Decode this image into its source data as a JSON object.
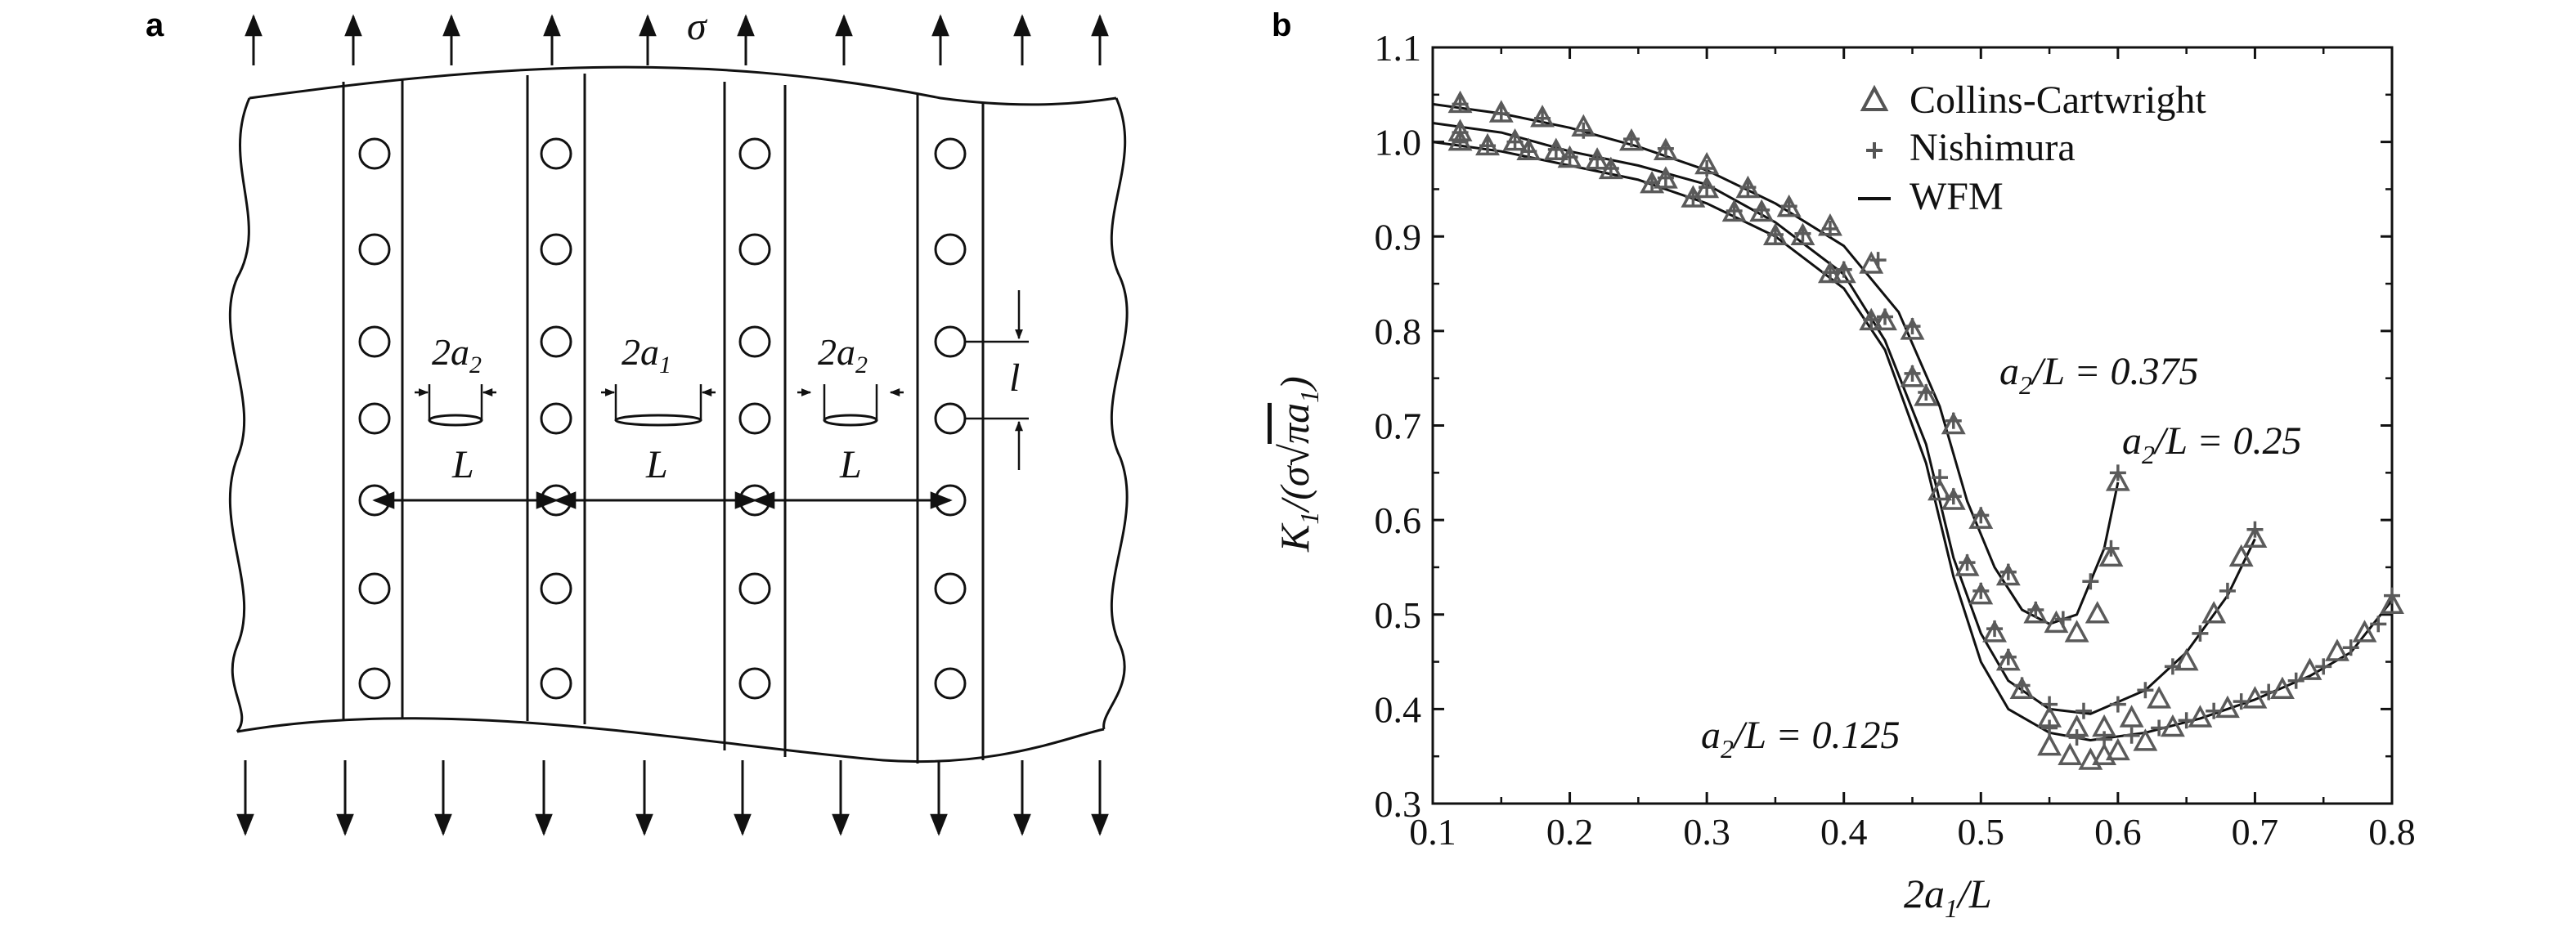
{
  "panels": {
    "a": {
      "letter": "a",
      "stress_label": "σ",
      "dim_2a2": "2a",
      "dim_2a2_sub": "2",
      "dim_2a1": "2a",
      "dim_2a1_sub": "1",
      "dim_L": "L",
      "dim_l": "l"
    },
    "b": {
      "letter": "b"
    }
  },
  "chart_data": {
    "type": "scatter",
    "xlabel_main": "2a",
    "xlabel_sub": "1",
    "xlabel_tail": "/L",
    "ylabel": "K1/(σ√πa1)",
    "xlim": [
      0.1,
      0.8
    ],
    "ylim": [
      0.3,
      1.1
    ],
    "x_ticks": [
      "0.1",
      "0.2",
      "0.3",
      "0.4",
      "0.5",
      "0.6",
      "0.7",
      "0.8"
    ],
    "y_ticks": [
      "0.3",
      "0.4",
      "0.5",
      "0.6",
      "0.7",
      "0.8",
      "0.9",
      "1.0",
      "1.1"
    ],
    "legend": {
      "placement": "top-right",
      "entries": [
        "Collins-Cartwright",
        "Nishimura",
        "WFM"
      ]
    },
    "annotations": [
      {
        "text_a": "a",
        "text_sub": "2",
        "text_b": "/L = 0.375"
      },
      {
        "text_a": "a",
        "text_sub": "2",
        "text_b": "/L = 0.25"
      },
      {
        "text_a": "a",
        "text_sub": "2",
        "text_b": "/L = 0.125"
      }
    ],
    "series": [
      {
        "curve": "a2/L = 0.375",
        "wfm": [
          [
            0.1,
            1.04
          ],
          [
            0.15,
            1.03
          ],
          [
            0.2,
            1.015
          ],
          [
            0.25,
            0.995
          ],
          [
            0.3,
            0.97
          ],
          [
            0.35,
            0.935
          ],
          [
            0.4,
            0.89
          ],
          [
            0.44,
            0.82
          ],
          [
            0.47,
            0.72
          ],
          [
            0.49,
            0.62
          ],
          [
            0.51,
            0.55
          ],
          [
            0.53,
            0.505
          ],
          [
            0.55,
            0.49
          ],
          [
            0.57,
            0.5
          ],
          [
            0.59,
            0.57
          ],
          [
            0.6,
            0.64
          ]
        ],
        "collins": [
          [
            0.12,
            1.04
          ],
          [
            0.15,
            1.03
          ],
          [
            0.18,
            1.025
          ],
          [
            0.21,
            1.015
          ],
          [
            0.245,
            1.0
          ],
          [
            0.27,
            0.99
          ],
          [
            0.3,
            0.975
          ],
          [
            0.33,
            0.95
          ],
          [
            0.36,
            0.93
          ],
          [
            0.39,
            0.91
          ],
          [
            0.42,
            0.87
          ],
          [
            0.45,
            0.8
          ],
          [
            0.48,
            0.7
          ],
          [
            0.5,
            0.6
          ],
          [
            0.52,
            0.54
          ],
          [
            0.54,
            0.5
          ],
          [
            0.555,
            0.49
          ],
          [
            0.57,
            0.48
          ],
          [
            0.585,
            0.5
          ],
          [
            0.595,
            0.56
          ],
          [
            0.6,
            0.64
          ]
        ],
        "nishimura": [
          [
            0.12,
            1.04
          ],
          [
            0.15,
            1.03
          ],
          [
            0.18,
            1.025
          ],
          [
            0.21,
            1.012
          ],
          [
            0.245,
            1.003
          ],
          [
            0.27,
            0.993
          ],
          [
            0.3,
            0.972
          ],
          [
            0.33,
            0.952
          ],
          [
            0.36,
            0.932
          ],
          [
            0.39,
            0.908
          ],
          [
            0.425,
            0.875
          ],
          [
            0.45,
            0.805
          ],
          [
            0.48,
            0.705
          ],
          [
            0.5,
            0.605
          ],
          [
            0.52,
            0.545
          ],
          [
            0.54,
            0.505
          ],
          [
            0.56,
            0.495
          ],
          [
            0.58,
            0.535
          ],
          [
            0.595,
            0.57
          ],
          [
            0.6,
            0.65
          ]
        ]
      },
      {
        "curve": "a2/L = 0.25",
        "wfm": [
          [
            0.1,
            1.02
          ],
          [
            0.15,
            1.01
          ],
          [
            0.2,
            0.99
          ],
          [
            0.25,
            0.975
          ],
          [
            0.3,
            0.955
          ],
          [
            0.35,
            0.915
          ],
          [
            0.4,
            0.86
          ],
          [
            0.43,
            0.79
          ],
          [
            0.46,
            0.68
          ],
          [
            0.48,
            0.56
          ],
          [
            0.5,
            0.48
          ],
          [
            0.52,
            0.43
          ],
          [
            0.55,
            0.4
          ],
          [
            0.58,
            0.395
          ],
          [
            0.62,
            0.42
          ],
          [
            0.65,
            0.46
          ],
          [
            0.68,
            0.52
          ],
          [
            0.7,
            0.58
          ]
        ],
        "collins": [
          [
            0.12,
            1.01
          ],
          [
            0.16,
            1.0
          ],
          [
            0.19,
            0.99
          ],
          [
            0.22,
            0.98
          ],
          [
            0.27,
            0.96
          ],
          [
            0.3,
            0.95
          ],
          [
            0.34,
            0.925
          ],
          [
            0.37,
            0.9
          ],
          [
            0.4,
            0.86
          ],
          [
            0.43,
            0.81
          ],
          [
            0.46,
            0.73
          ],
          [
            0.48,
            0.62
          ],
          [
            0.5,
            0.52
          ],
          [
            0.52,
            0.45
          ],
          [
            0.55,
            0.39
          ],
          [
            0.57,
            0.38
          ],
          [
            0.59,
            0.38
          ],
          [
            0.61,
            0.39
          ],
          [
            0.63,
            0.41
          ],
          [
            0.65,
            0.45
          ],
          [
            0.67,
            0.5
          ],
          [
            0.69,
            0.56
          ],
          [
            0.7,
            0.58
          ]
        ],
        "nishimura": [
          [
            0.12,
            1.01
          ],
          [
            0.16,
            1.0
          ],
          [
            0.19,
            0.992
          ],
          [
            0.22,
            0.982
          ],
          [
            0.27,
            0.962
          ],
          [
            0.3,
            0.952
          ],
          [
            0.34,
            0.928
          ],
          [
            0.37,
            0.903
          ],
          [
            0.4,
            0.865
          ],
          [
            0.43,
            0.815
          ],
          [
            0.46,
            0.735
          ],
          [
            0.48,
            0.625
          ],
          [
            0.5,
            0.525
          ],
          [
            0.52,
            0.455
          ],
          [
            0.55,
            0.405
          ],
          [
            0.575,
            0.398
          ],
          [
            0.6,
            0.405
          ],
          [
            0.62,
            0.42
          ],
          [
            0.64,
            0.445
          ],
          [
            0.66,
            0.48
          ],
          [
            0.68,
            0.525
          ],
          [
            0.7,
            0.59
          ]
        ]
      },
      {
        "curve": "a2/L = 0.125",
        "wfm": [
          [
            0.1,
            1.0
          ],
          [
            0.15,
            0.99
          ],
          [
            0.2,
            0.975
          ],
          [
            0.25,
            0.96
          ],
          [
            0.3,
            0.935
          ],
          [
            0.35,
            0.9
          ],
          [
            0.4,
            0.845
          ],
          [
            0.43,
            0.78
          ],
          [
            0.46,
            0.66
          ],
          [
            0.48,
            0.54
          ],
          [
            0.5,
            0.45
          ],
          [
            0.52,
            0.4
          ],
          [
            0.55,
            0.375
          ],
          [
            0.58,
            0.367
          ],
          [
            0.62,
            0.375
          ],
          [
            0.66,
            0.39
          ],
          [
            0.7,
            0.41
          ],
          [
            0.74,
            0.435
          ],
          [
            0.77,
            0.46
          ],
          [
            0.8,
            0.515
          ]
        ],
        "collins": [
          [
            0.12,
            1.0
          ],
          [
            0.14,
            0.995
          ],
          [
            0.17,
            0.99
          ],
          [
            0.2,
            0.982
          ],
          [
            0.23,
            0.97
          ],
          [
            0.26,
            0.955
          ],
          [
            0.29,
            0.94
          ],
          [
            0.32,
            0.925
          ],
          [
            0.35,
            0.9
          ],
          [
            0.39,
            0.86
          ],
          [
            0.42,
            0.81
          ],
          [
            0.45,
            0.75
          ],
          [
            0.47,
            0.63
          ],
          [
            0.49,
            0.55
          ],
          [
            0.51,
            0.48
          ],
          [
            0.53,
            0.42
          ],
          [
            0.55,
            0.36
          ],
          [
            0.565,
            0.35
          ],
          [
            0.58,
            0.345
          ],
          [
            0.59,
            0.35
          ],
          [
            0.6,
            0.355
          ],
          [
            0.62,
            0.365
          ],
          [
            0.64,
            0.38
          ],
          [
            0.66,
            0.39
          ],
          [
            0.68,
            0.4
          ],
          [
            0.7,
            0.41
          ],
          [
            0.72,
            0.42
          ],
          [
            0.74,
            0.44
          ],
          [
            0.76,
            0.46
          ],
          [
            0.78,
            0.48
          ],
          [
            0.8,
            0.51
          ]
        ],
        "nishimura": [
          [
            0.12,
            1.0
          ],
          [
            0.14,
            0.996
          ],
          [
            0.17,
            0.99
          ],
          [
            0.2,
            0.984
          ],
          [
            0.23,
            0.972
          ],
          [
            0.26,
            0.957
          ],
          [
            0.29,
            0.942
          ],
          [
            0.32,
            0.927
          ],
          [
            0.35,
            0.902
          ],
          [
            0.39,
            0.862
          ],
          [
            0.42,
            0.812
          ],
          [
            0.45,
            0.755
          ],
          [
            0.47,
            0.645
          ],
          [
            0.49,
            0.555
          ],
          [
            0.51,
            0.485
          ],
          [
            0.53,
            0.425
          ],
          [
            0.55,
            0.38
          ],
          [
            0.57,
            0.37
          ],
          [
            0.59,
            0.368
          ],
          [
            0.61,
            0.372
          ],
          [
            0.63,
            0.38
          ],
          [
            0.65,
            0.388
          ],
          [
            0.67,
            0.398
          ],
          [
            0.69,
            0.408
          ],
          [
            0.71,
            0.418
          ],
          [
            0.73,
            0.43
          ],
          [
            0.75,
            0.445
          ],
          [
            0.77,
            0.465
          ],
          [
            0.79,
            0.49
          ],
          [
            0.8,
            0.52
          ]
        ]
      }
    ]
  }
}
